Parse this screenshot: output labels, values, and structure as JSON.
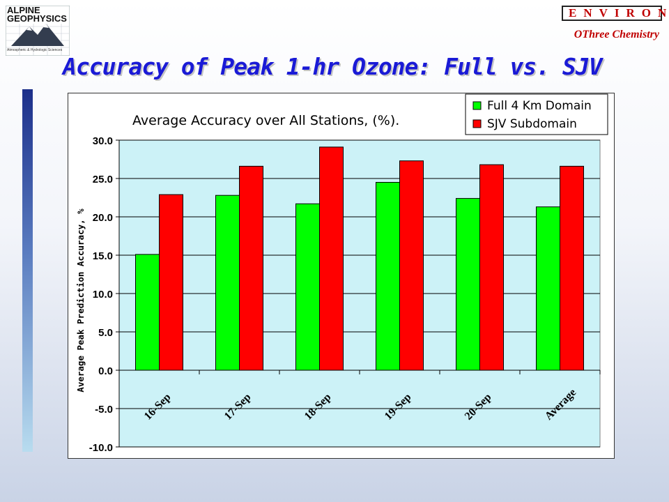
{
  "branding": {
    "logo_text_line1": "ALPINE",
    "logo_text_line2": "GEOPHYSICS",
    "logo_subtext": "Atmospheric & Hydrologic Sciences",
    "environ_label": "ENVIRON",
    "othree_label": "OThree Chemistry"
  },
  "slide_title": "Accuracy of Peak 1-hr Ozone: Full vs. SJV",
  "colors": {
    "title_blue": "#1a1ad6",
    "plot_bg": "#ccf2f7",
    "full_series": "#00ff00",
    "sjv_series": "#ff0000",
    "environ_red": "#c00000"
  },
  "chart_data": {
    "type": "bar",
    "title": "Average Accuracy over All Stations, (%).",
    "ylabel": "Average Peak Prediction Accuracy, %",
    "xlabel": "",
    "categories": [
      "16-Sep",
      "17-Sep",
      "18-Sep",
      "19-Sep",
      "20-Sep",
      "Average"
    ],
    "series": [
      {
        "name": "Full 4 Km Domain",
        "color": "#00ff00",
        "values": [
          15.1,
          22.8,
          21.7,
          24.5,
          22.4,
          21.3
        ]
      },
      {
        "name": "SJV Subdomain",
        "color": "#ff0000",
        "values": [
          22.9,
          26.6,
          29.1,
          27.3,
          26.8,
          26.6
        ]
      }
    ],
    "ylim": [
      -10.0,
      30.0
    ],
    "yticks": [
      "30.0",
      "25.0",
      "20.0",
      "15.0",
      "10.0",
      "5.0",
      "0.0",
      "-5.0",
      "-10.0"
    ],
    "legend_position": "top-right",
    "grid": true
  }
}
